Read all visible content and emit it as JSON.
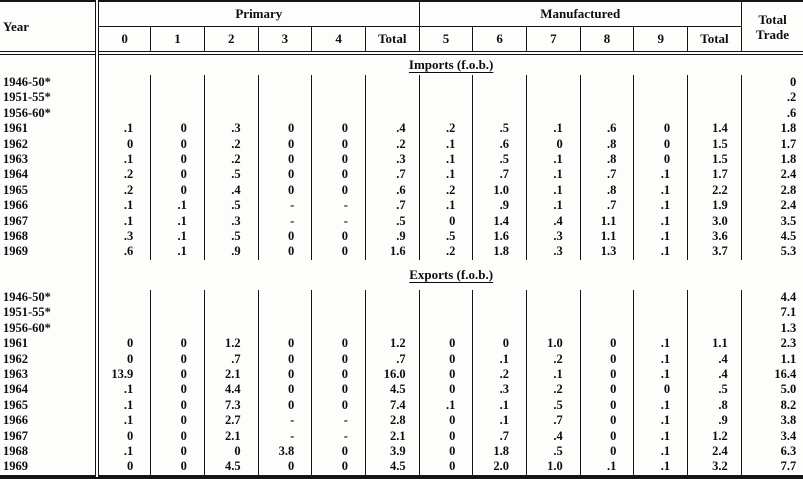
{
  "table": {
    "header": {
      "year": "Year",
      "primary_label": "Primary",
      "manufactured_label": "Manufactured",
      "total_trade": "Total\nTrade",
      "primary_cols": [
        "0",
        "1",
        "2",
        "3",
        "4",
        "Total"
      ],
      "manufactured_cols": [
        "5",
        "6",
        "7",
        "8",
        "9",
        "Total"
      ]
    },
    "sections": [
      {
        "title": "Imports (f.o.b.)",
        "rows": [
          {
            "year": "1946-50*",
            "cells": [
              "",
              "",
              "",
              "",
              "",
              "",
              "",
              "",
              "",
              "",
              "",
              ""
            ],
            "total": "0"
          },
          {
            "year": "1951-55*",
            "cells": [
              "",
              "",
              "",
              "",
              "",
              "",
              "",
              "",
              "",
              "",
              "",
              ""
            ],
            "total": ".2"
          },
          {
            "year": "1956-60*",
            "cells": [
              "",
              "",
              "",
              "",
              "",
              "",
              "",
              "",
              "",
              "",
              "",
              ""
            ],
            "total": ".6"
          },
          {
            "year": "1961",
            "cells": [
              ".1",
              "0",
              ".3",
              "0",
              "0",
              ".4",
              ".2",
              ".5",
              ".1",
              ".6",
              "0",
              "1.4"
            ],
            "total": "1.8"
          },
          {
            "year": "1962",
            "cells": [
              "0",
              "0",
              ".2",
              "0",
              "0",
              ".2",
              ".1",
              ".6",
              "0",
              ".8",
              "0",
              "1.5"
            ],
            "total": "1.7"
          },
          {
            "year": "1963",
            "cells": [
              ".1",
              "0",
              ".2",
              "0",
              "0",
              ".3",
              ".1",
              ".5",
              ".1",
              ".8",
              "0",
              "1.5"
            ],
            "total": "1.8"
          },
          {
            "year": "1964",
            "cells": [
              ".2",
              "0",
              ".5",
              "0",
              "0",
              ".7",
              ".1",
              ".7",
              ".1",
              ".7",
              ".1",
              "1.7"
            ],
            "total": "2.4"
          },
          {
            "year": "1965",
            "cells": [
              ".2",
              "0",
              ".4",
              "0",
              "0",
              ".6",
              ".2",
              "1.0",
              ".1",
              ".8",
              ".1",
              "2.2"
            ],
            "total": "2.8"
          },
          {
            "year": "1966",
            "cells": [
              ".1",
              ".1",
              ".5",
              "-",
              "-",
              ".7",
              ".1",
              ".9",
              ".1",
              ".7",
              ".1",
              "1.9"
            ],
            "total": "2.4"
          },
          {
            "year": "1967",
            "cells": [
              ".1",
              ".1",
              ".3",
              "-",
              "-",
              ".5",
              "0",
              "1.4",
              ".4",
              "1.1",
              ".1",
              "3.0"
            ],
            "total": "3.5"
          },
          {
            "year": "1968",
            "cells": [
              ".3",
              ".1",
              ".5",
              "0",
              "0",
              ".9",
              ".5",
              "1.6",
              ".3",
              "1.1",
              ".1",
              "3.6"
            ],
            "total": "4.5"
          },
          {
            "year": "1969",
            "cells": [
              ".6",
              ".1",
              ".9",
              "0",
              "0",
              "1.6",
              ".2",
              "1.8",
              ".3",
              "1.3",
              ".1",
              "3.7"
            ],
            "total": "5.3"
          }
        ]
      },
      {
        "title": "Exports (f.o.b.)",
        "rows": [
          {
            "year": "1946-50*",
            "cells": [
              "",
              "",
              "",
              "",
              "",
              "",
              "",
              "",
              "",
              "",
              "",
              ""
            ],
            "total": "4.4"
          },
          {
            "year": "1951-55*",
            "cells": [
              "",
              "",
              "",
              "",
              "",
              "",
              "",
              "",
              "",
              "",
              "",
              ""
            ],
            "total": "7.1"
          },
          {
            "year": "1956-60*",
            "cells": [
              "",
              "",
              "",
              "",
              "",
              "",
              "",
              "",
              "",
              "",
              "",
              ""
            ],
            "total": "1.3"
          },
          {
            "year": "1961",
            "cells": [
              "0",
              "0",
              "1.2",
              "0",
              "0",
              "1.2",
              "0",
              "0",
              "1.0",
              "0",
              ".1",
              "1.1"
            ],
            "total": "2.3"
          },
          {
            "year": "1962",
            "cells": [
              "0",
              "0",
              ".7",
              "0",
              "0",
              ".7",
              "0",
              ".1",
              ".2",
              "0",
              ".1",
              ".4"
            ],
            "total": "1.1"
          },
          {
            "year": "1963",
            "cells": [
              "13.9",
              "0",
              "2.1",
              "0",
              "0",
              "16.0",
              "0",
              ".2",
              ".1",
              "0",
              ".1",
              ".4"
            ],
            "total": "16.4"
          },
          {
            "year": "1964",
            "cells": [
              ".1",
              "0",
              "4.4",
              "0",
              "0",
              "4.5",
              "0",
              ".3",
              ".2",
              "0",
              "0",
              ".5"
            ],
            "total": "5.0"
          },
          {
            "year": "1965",
            "cells": [
              ".1",
              "0",
              "7.3",
              "0",
              "0",
              "7.4",
              ".1",
              ".1",
              ".5",
              "0",
              ".1",
              ".8"
            ],
            "total": "8.2"
          },
          {
            "year": "1966",
            "cells": [
              ".1",
              "0",
              "2.7",
              "-",
              "-",
              "2.8",
              "0",
              ".1",
              ".7",
              "0",
              ".1",
              ".9"
            ],
            "total": "3.8"
          },
          {
            "year": "1967",
            "cells": [
              "0",
              "0",
              "2.1",
              "-",
              "-",
              "2.1",
              "0",
              ".7",
              ".4",
              "0",
              ".1",
              "1.2"
            ],
            "total": "3.4"
          },
          {
            "year": "1968",
            "cells": [
              ".1",
              "0",
              "0",
              "3.8",
              "0",
              "3.9",
              "0",
              "1.8",
              ".5",
              "0",
              ".1",
              "2.4"
            ],
            "total": "6.3"
          },
          {
            "year": "1969",
            "cells": [
              "0",
              "0",
              "4.5",
              "0",
              "0",
              "4.5",
              "0",
              "2.0",
              "1.0",
              ".1",
              ".1",
              "3.2"
            ],
            "total": "7.7"
          }
        ]
      }
    ]
  }
}
